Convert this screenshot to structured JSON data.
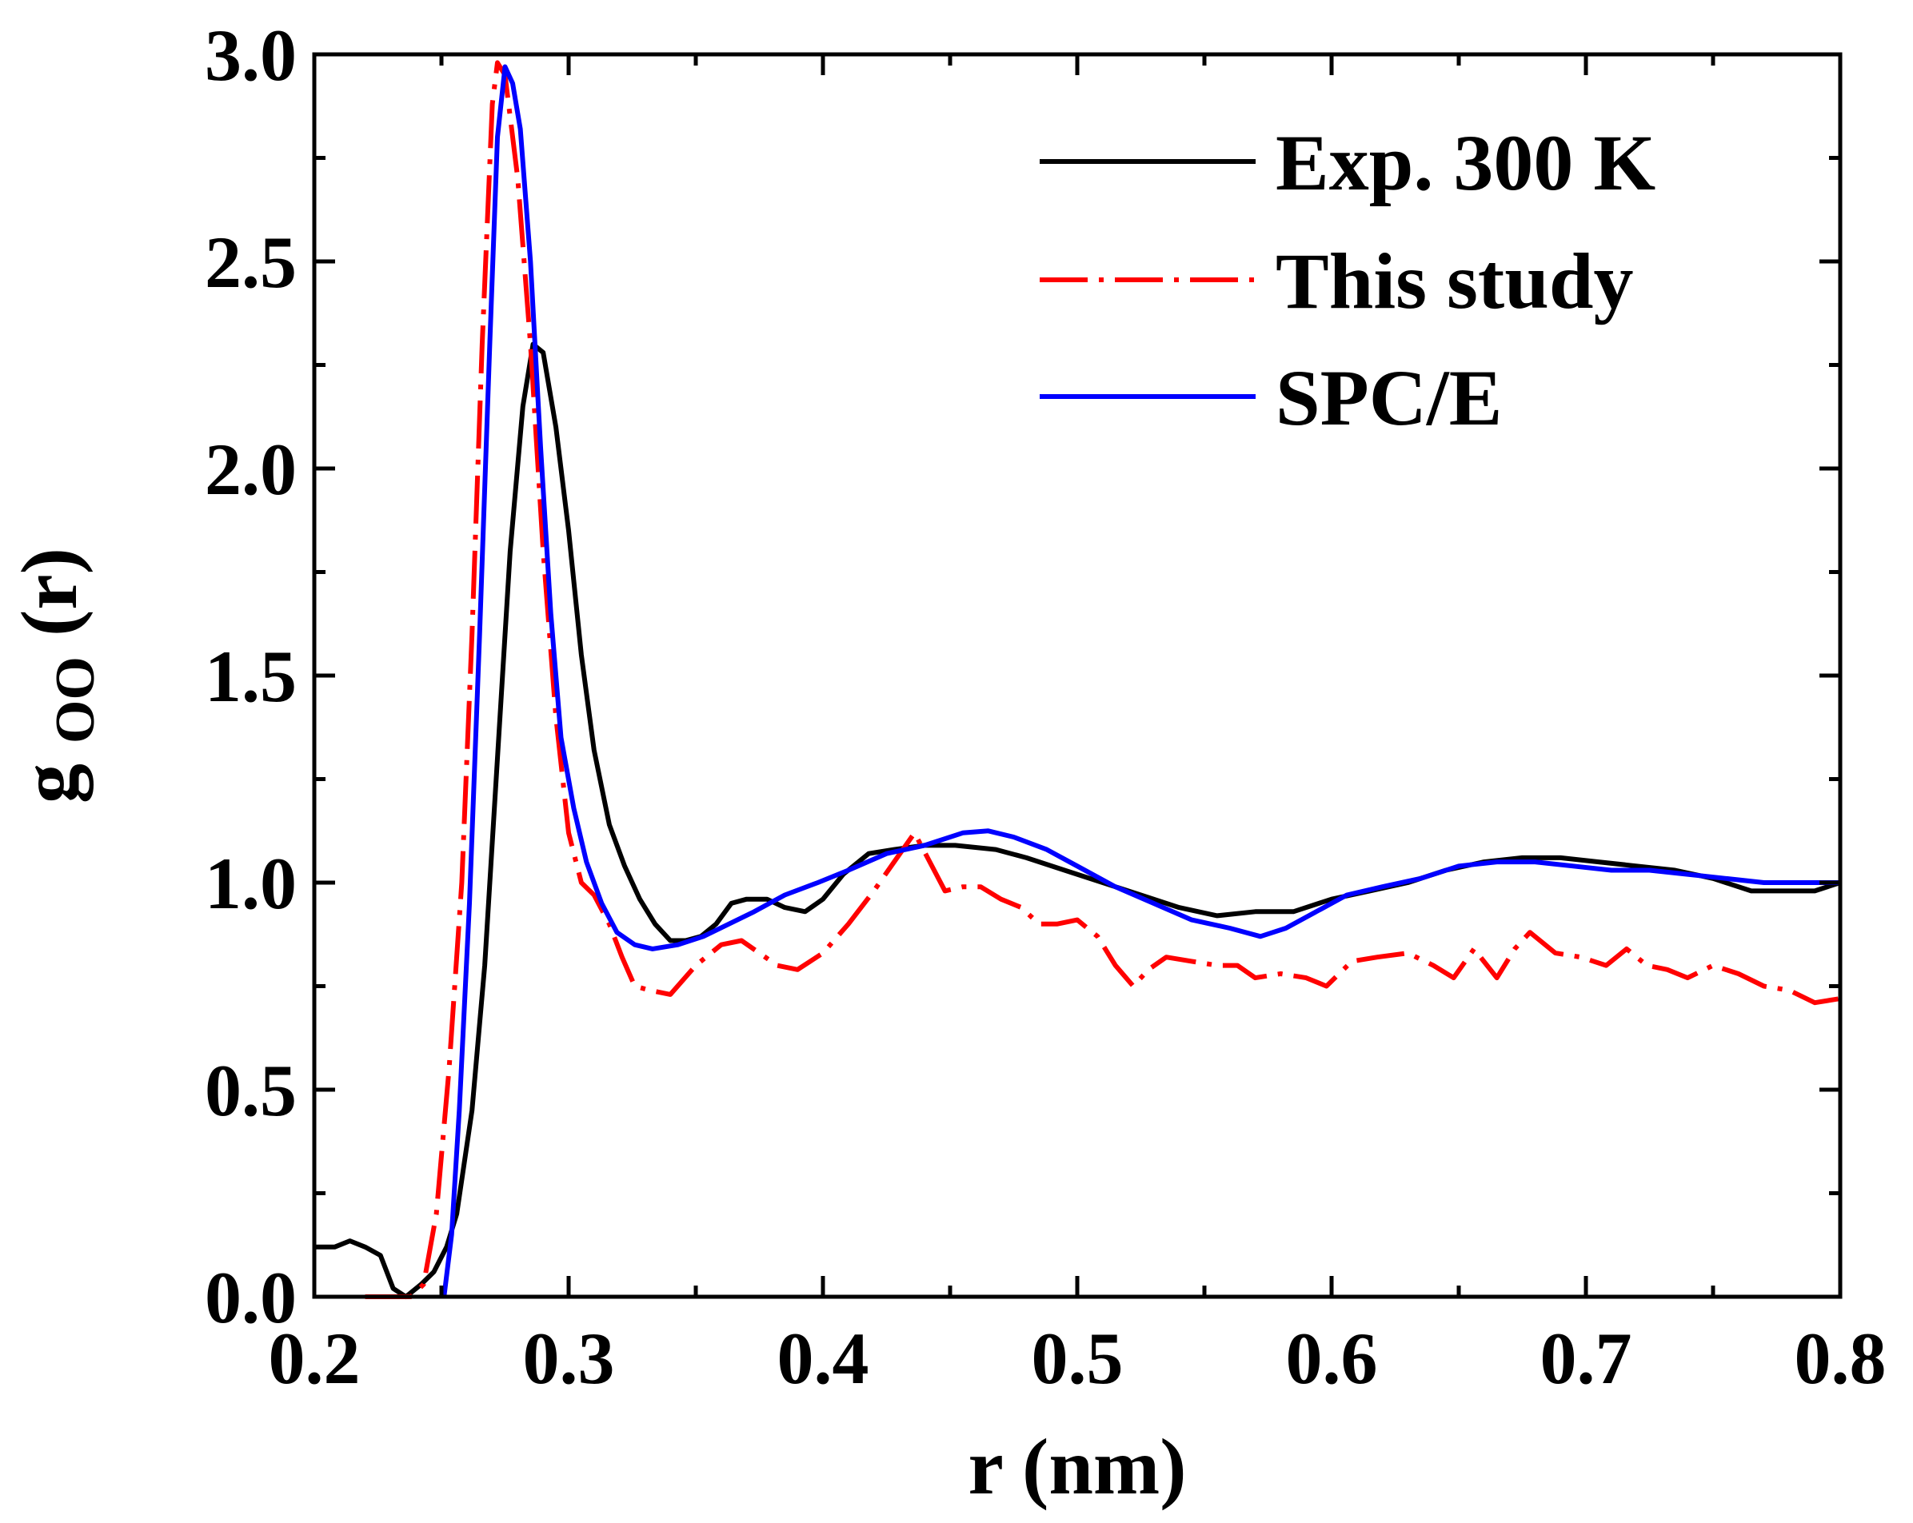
{
  "chart_data": {
    "type": "line",
    "title": "",
    "xlabel": "r (nm)",
    "ylabel": {
      "main": "g",
      "sub": "OO",
      "suffix": "(r)"
    },
    "xlim": [
      0.2,
      0.8
    ],
    "ylim": [
      0.0,
      3.0
    ],
    "x_ticks": [
      "0.2",
      "0.3",
      "0.4",
      "0.5",
      "0.6",
      "0.7",
      "0.8"
    ],
    "y_ticks": [
      "0.0",
      "0.5",
      "1.0",
      "1.5",
      "2.0",
      "2.5",
      "3.0"
    ],
    "grid": false,
    "legend_position": "top-right",
    "series": [
      {
        "name": "Exp. 300 K",
        "color": "#000000",
        "dash": "solid",
        "points": [
          [
            0.2,
            0.12
          ],
          [
            0.208,
            0.12
          ],
          [
            0.214,
            0.135
          ],
          [
            0.22,
            0.12
          ],
          [
            0.226,
            0.1
          ],
          [
            0.231,
            0.02
          ],
          [
            0.236,
            0.0
          ],
          [
            0.242,
            0.03
          ],
          [
            0.247,
            0.06
          ],
          [
            0.252,
            0.12
          ],
          [
            0.256,
            0.2
          ],
          [
            0.262,
            0.45
          ],
          [
            0.267,
            0.8
          ],
          [
            0.272,
            1.3
          ],
          [
            0.277,
            1.8
          ],
          [
            0.282,
            2.15
          ],
          [
            0.286,
            2.3
          ],
          [
            0.29,
            2.28
          ],
          [
            0.295,
            2.1
          ],
          [
            0.3,
            1.85
          ],
          [
            0.305,
            1.55
          ],
          [
            0.31,
            1.32
          ],
          [
            0.316,
            1.14
          ],
          [
            0.322,
            1.04
          ],
          [
            0.328,
            0.96
          ],
          [
            0.334,
            0.9
          ],
          [
            0.34,
            0.86
          ],
          [
            0.346,
            0.86
          ],
          [
            0.352,
            0.87
          ],
          [
            0.358,
            0.9
          ],
          [
            0.364,
            0.95
          ],
          [
            0.37,
            0.96
          ],
          [
            0.378,
            0.96
          ],
          [
            0.385,
            0.94
          ],
          [
            0.393,
            0.93
          ],
          [
            0.4,
            0.96
          ],
          [
            0.408,
            1.02
          ],
          [
            0.418,
            1.07
          ],
          [
            0.428,
            1.08
          ],
          [
            0.44,
            1.09
          ],
          [
            0.452,
            1.09
          ],
          [
            0.468,
            1.08
          ],
          [
            0.48,
            1.06
          ],
          [
            0.495,
            1.03
          ],
          [
            0.51,
            1.0
          ],
          [
            0.525,
            0.97
          ],
          [
            0.54,
            0.94
          ],
          [
            0.555,
            0.92
          ],
          [
            0.57,
            0.93
          ],
          [
            0.585,
            0.93
          ],
          [
            0.6,
            0.96
          ],
          [
            0.615,
            0.98
          ],
          [
            0.63,
            1.0
          ],
          [
            0.645,
            1.03
          ],
          [
            0.66,
            1.05
          ],
          [
            0.675,
            1.06
          ],
          [
            0.69,
            1.06
          ],
          [
            0.705,
            1.05
          ],
          [
            0.72,
            1.04
          ],
          [
            0.735,
            1.03
          ],
          [
            0.75,
            1.01
          ],
          [
            0.765,
            0.98
          ],
          [
            0.78,
            0.98
          ],
          [
            0.79,
            0.98
          ],
          [
            0.8,
            1.0
          ]
        ]
      },
      {
        "name": "This study",
        "color": "#ff0000",
        "dash": "dash-dot",
        "points": [
          [
            0.22,
            0.0
          ],
          [
            0.232,
            0.0
          ],
          [
            0.238,
            0.0
          ],
          [
            0.243,
            0.03
          ],
          [
            0.248,
            0.2
          ],
          [
            0.253,
            0.55
          ],
          [
            0.258,
            1.0
          ],
          [
            0.262,
            1.6
          ],
          [
            0.266,
            2.3
          ],
          [
            0.27,
            2.88
          ],
          [
            0.272,
            2.98
          ],
          [
            0.275,
            2.95
          ],
          [
            0.28,
            2.7
          ],
          [
            0.285,
            2.3
          ],
          [
            0.29,
            1.8
          ],
          [
            0.295,
            1.4
          ],
          [
            0.3,
            1.12
          ],
          [
            0.305,
            1.0
          ],
          [
            0.31,
            0.97
          ],
          [
            0.316,
            0.9
          ],
          [
            0.321,
            0.82
          ],
          [
            0.326,
            0.75
          ],
          [
            0.332,
            0.74
          ],
          [
            0.34,
            0.73
          ],
          [
            0.35,
            0.8
          ],
          [
            0.36,
            0.85
          ],
          [
            0.368,
            0.86
          ],
          [
            0.375,
            0.83
          ],
          [
            0.382,
            0.8
          ],
          [
            0.39,
            0.79
          ],
          [
            0.4,
            0.83
          ],
          [
            0.41,
            0.9
          ],
          [
            0.42,
            0.98
          ],
          [
            0.428,
            1.05
          ],
          [
            0.436,
            1.12
          ],
          [
            0.442,
            1.05
          ],
          [
            0.448,
            0.98
          ],
          [
            0.455,
            0.99
          ],
          [
            0.462,
            0.99
          ],
          [
            0.47,
            0.96
          ],
          [
            0.478,
            0.94
          ],
          [
            0.485,
            0.9
          ],
          [
            0.492,
            0.9
          ],
          [
            0.5,
            0.91
          ],
          [
            0.508,
            0.87
          ],
          [
            0.515,
            0.8
          ],
          [
            0.522,
            0.75
          ],
          [
            0.528,
            0.79
          ],
          [
            0.535,
            0.82
          ],
          [
            0.545,
            0.81
          ],
          [
            0.555,
            0.8
          ],
          [
            0.563,
            0.8
          ],
          [
            0.57,
            0.77
          ],
          [
            0.58,
            0.78
          ],
          [
            0.59,
            0.77
          ],
          [
            0.598,
            0.75
          ],
          [
            0.608,
            0.81
          ],
          [
            0.618,
            0.82
          ],
          [
            0.63,
            0.83
          ],
          [
            0.64,
            0.8
          ],
          [
            0.648,
            0.77
          ],
          [
            0.656,
            0.84
          ],
          [
            0.665,
            0.77
          ],
          [
            0.672,
            0.84
          ],
          [
            0.678,
            0.88
          ],
          [
            0.688,
            0.83
          ],
          [
            0.698,
            0.82
          ],
          [
            0.708,
            0.8
          ],
          [
            0.716,
            0.84
          ],
          [
            0.724,
            0.8
          ],
          [
            0.732,
            0.79
          ],
          [
            0.74,
            0.77
          ],
          [
            0.75,
            0.8
          ],
          [
            0.76,
            0.78
          ],
          [
            0.77,
            0.75
          ],
          [
            0.78,
            0.74
          ],
          [
            0.79,
            0.71
          ],
          [
            0.8,
            0.72
          ]
        ]
      },
      {
        "name": "SPC/E",
        "color": "#0000ff",
        "dash": "solid",
        "points": [
          [
            0.251,
            0.0
          ],
          [
            0.254,
            0.15
          ],
          [
            0.257,
            0.45
          ],
          [
            0.261,
            0.95
          ],
          [
            0.265,
            1.6
          ],
          [
            0.269,
            2.3
          ],
          [
            0.272,
            2.8
          ],
          [
            0.275,
            2.97
          ],
          [
            0.278,
            2.93
          ],
          [
            0.281,
            2.82
          ],
          [
            0.285,
            2.5
          ],
          [
            0.289,
            2.05
          ],
          [
            0.293,
            1.65
          ],
          [
            0.297,
            1.35
          ],
          [
            0.302,
            1.18
          ],
          [
            0.307,
            1.05
          ],
          [
            0.313,
            0.95
          ],
          [
            0.319,
            0.88
          ],
          [
            0.326,
            0.85
          ],
          [
            0.333,
            0.84
          ],
          [
            0.343,
            0.85
          ],
          [
            0.353,
            0.87
          ],
          [
            0.363,
            0.9
          ],
          [
            0.373,
            0.93
          ],
          [
            0.385,
            0.97
          ],
          [
            0.398,
            1.0
          ],
          [
            0.41,
            1.03
          ],
          [
            0.425,
            1.07
          ],
          [
            0.44,
            1.09
          ],
          [
            0.455,
            1.12
          ],
          [
            0.465,
            1.125
          ],
          [
            0.475,
            1.11
          ],
          [
            0.488,
            1.08
          ],
          [
            0.5,
            1.04
          ],
          [
            0.515,
            0.99
          ],
          [
            0.53,
            0.95
          ],
          [
            0.545,
            0.91
          ],
          [
            0.56,
            0.89
          ],
          [
            0.572,
            0.87
          ],
          [
            0.582,
            0.89
          ],
          [
            0.594,
            0.93
          ],
          [
            0.606,
            0.97
          ],
          [
            0.62,
            0.99
          ],
          [
            0.635,
            1.01
          ],
          [
            0.65,
            1.04
          ],
          [
            0.665,
            1.05
          ],
          [
            0.68,
            1.05
          ],
          [
            0.695,
            1.04
          ],
          [
            0.71,
            1.03
          ],
          [
            0.725,
            1.03
          ],
          [
            0.74,
            1.02
          ],
          [
            0.755,
            1.01
          ],
          [
            0.77,
            1.0
          ],
          [
            0.785,
            1.0
          ],
          [
            0.8,
            1.0
          ]
        ]
      }
    ]
  }
}
